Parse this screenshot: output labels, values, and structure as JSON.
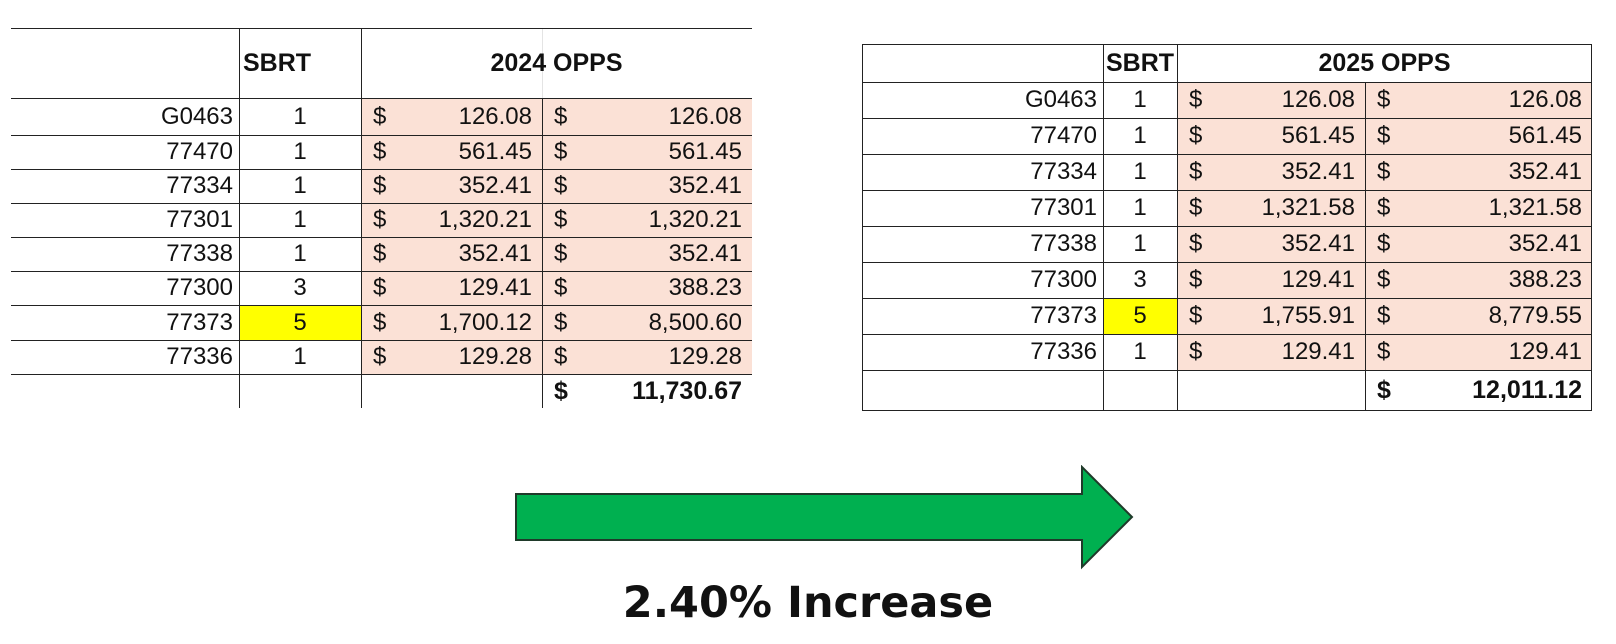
{
  "table_2024": {
    "sbrt_header": "SBRT",
    "opps_header": "2024 OPPS",
    "rows": [
      {
        "code": "G0463",
        "sbrt": "1",
        "rate": "126.08",
        "total": "126.08",
        "highlight": false
      },
      {
        "code": "77470",
        "sbrt": "1",
        "rate": "561.45",
        "total": "561.45",
        "highlight": false
      },
      {
        "code": "77334",
        "sbrt": "1",
        "rate": "352.41",
        "total": "352.41",
        "highlight": false
      },
      {
        "code": "77301",
        "sbrt": "1",
        "rate": "1,320.21",
        "total": "1,320.21",
        "highlight": false
      },
      {
        "code": "77338",
        "sbrt": "1",
        "rate": "352.41",
        "total": "352.41",
        "highlight": false
      },
      {
        "code": "77300",
        "sbrt": "3",
        "rate": "129.41",
        "total": "388.23",
        "highlight": false
      },
      {
        "code": "77373",
        "sbrt": "5",
        "rate": "1,700.12",
        "total": "8,500.60",
        "highlight": true
      },
      {
        "code": "77336",
        "sbrt": "1",
        "rate": "129.28",
        "total": "129.28",
        "highlight": false
      }
    ],
    "currency": "$",
    "grand_total": "11,730.67"
  },
  "table_2025": {
    "sbrt_header": "SBRT",
    "opps_header": "2025 OPPS",
    "rows": [
      {
        "code": "G0463",
        "sbrt": "1",
        "rate": "126.08",
        "total": "126.08",
        "highlight": false
      },
      {
        "code": "77470",
        "sbrt": "1",
        "rate": "561.45",
        "total": "561.45",
        "highlight": false
      },
      {
        "code": "77334",
        "sbrt": "1",
        "rate": "352.41",
        "total": "352.41",
        "highlight": false
      },
      {
        "code": "77301",
        "sbrt": "1",
        "rate": "1,321.58",
        "total": "1,321.58",
        "highlight": false
      },
      {
        "code": "77338",
        "sbrt": "1",
        "rate": "352.41",
        "total": "352.41",
        "highlight": false
      },
      {
        "code": "77300",
        "sbrt": "3",
        "rate": "129.41",
        "total": "388.23",
        "highlight": false
      },
      {
        "code": "77373",
        "sbrt": "5",
        "rate": "1,755.91",
        "total": "8,779.55",
        "highlight": true
      },
      {
        "code": "77336",
        "sbrt": "1",
        "rate": "129.41",
        "total": "129.41",
        "highlight": false
      }
    ],
    "currency": "$",
    "grand_total": "12,011.12"
  },
  "arrow": {
    "color": "#00b050",
    "outline": "#1f3a2a",
    "icon": "right-arrow-icon"
  },
  "increase_label": "2.40% Increase",
  "colors": {
    "money_fill": "#fbe1d6",
    "highlight": "#ffff00"
  }
}
